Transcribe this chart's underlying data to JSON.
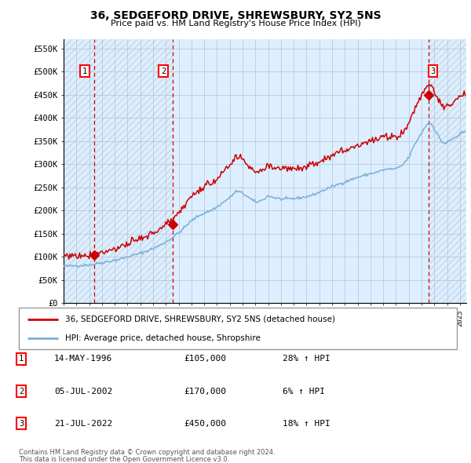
{
  "title1": "36, SEDGEFORD DRIVE, SHREWSBURY, SY2 5NS",
  "title2": "Price paid vs. HM Land Registry's House Price Index (HPI)",
  "ylabel_ticks": [
    "£0",
    "£50K",
    "£100K",
    "£150K",
    "£200K",
    "£250K",
    "£300K",
    "£350K",
    "£400K",
    "£450K",
    "£500K",
    "£550K"
  ],
  "ytick_values": [
    0,
    50000,
    100000,
    150000,
    200000,
    250000,
    300000,
    350000,
    400000,
    450000,
    500000,
    550000
  ],
  "xmin": 1994.0,
  "xmax": 2025.5,
  "ymin": 0,
  "ymax": 570000,
  "sale_years": [
    1996.37,
    2002.51,
    2022.55
  ],
  "sale_prices": [
    105000,
    170000,
    450000
  ],
  "sale_labels": [
    "1",
    "2",
    "3"
  ],
  "legend_line1": "36, SEDGEFORD DRIVE, SHREWSBURY, SY2 5NS (detached house)",
  "legend_line2": "HPI: Average price, detached house, Shropshire",
  "table_entries": [
    {
      "num": "1",
      "date": "14-MAY-1996",
      "price": "£105,000",
      "hpi": "28% ↑ HPI"
    },
    {
      "num": "2",
      "date": "05-JUL-2002",
      "price": "£170,000",
      "hpi": "6% ↑ HPI"
    },
    {
      "num": "3",
      "date": "21-JUL-2022",
      "price": "£450,000",
      "hpi": "18% ↑ HPI"
    }
  ],
  "footnote1": "Contains HM Land Registry data © Crown copyright and database right 2024.",
  "footnote2": "This data is licensed under the Open Government Licence v3.0.",
  "hpi_color": "#7bafd4",
  "price_color": "#cc0000",
  "shade_color": "#ddeeff",
  "grid_color": "#b0c4d8",
  "hatch_color": "#c8d8e8"
}
